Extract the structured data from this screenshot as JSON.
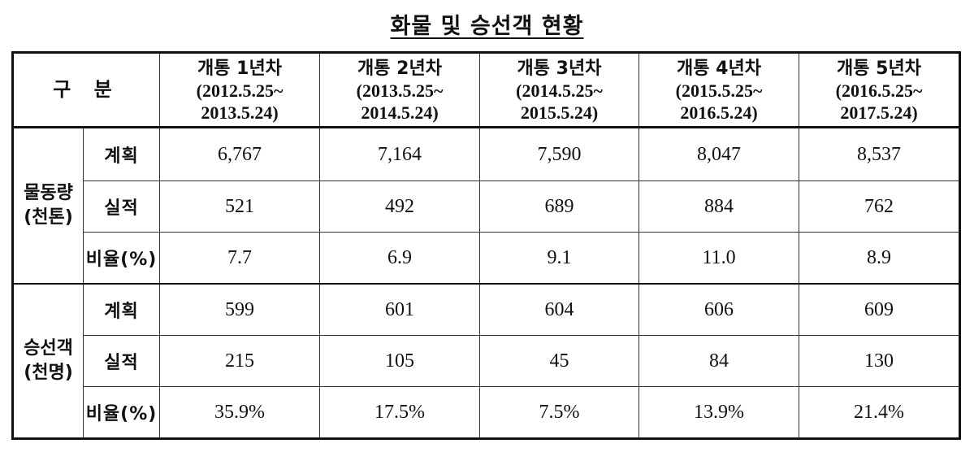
{
  "title": "화물 및 승선객 현황",
  "header": {
    "gubun": "구 분",
    "periods": [
      {
        "label": "개통 1년차",
        "range_start": "(2012.5.25~",
        "range_end": "2013.5.24)"
      },
      {
        "label": "개통 2년차",
        "range_start": "(2013.5.25~",
        "range_end": "2014.5.24)"
      },
      {
        "label": "개통 3년차",
        "range_start": "(2014.5.25~",
        "range_end": "2015.5.24)"
      },
      {
        "label": "개통 4년차",
        "range_start": "(2015.5.25~",
        "range_end": "2016.5.24)"
      },
      {
        "label": "개통 5년차",
        "range_start": "(2016.5.25~",
        "range_end": "2017.5.24)"
      }
    ]
  },
  "groups": [
    {
      "name_line1": "물동량",
      "name_line2": "(천톤)",
      "rows": [
        {
          "label": "계획",
          "values": [
            "6,767",
            "7,164",
            "7,590",
            "8,047",
            "8,537"
          ]
        },
        {
          "label": "실적",
          "values": [
            "521",
            "492",
            "689",
            "884",
            "762"
          ]
        },
        {
          "label": "비율(%)",
          "values": [
            "7.7",
            "6.9",
            "9.1",
            "11.0",
            "8.9"
          ]
        }
      ]
    },
    {
      "name_line1": "승선객",
      "name_line2": "(천명)",
      "rows": [
        {
          "label": "계획",
          "values": [
            "599",
            "601",
            "604",
            "606",
            "609"
          ]
        },
        {
          "label": "실적",
          "values": [
            "215",
            "105",
            "45",
            "84",
            "130"
          ]
        },
        {
          "label": "비율(%)",
          "values": [
            "35.9%",
            "17.5%",
            "7.5%",
            "13.9%",
            "21.4%"
          ]
        }
      ]
    }
  ]
}
